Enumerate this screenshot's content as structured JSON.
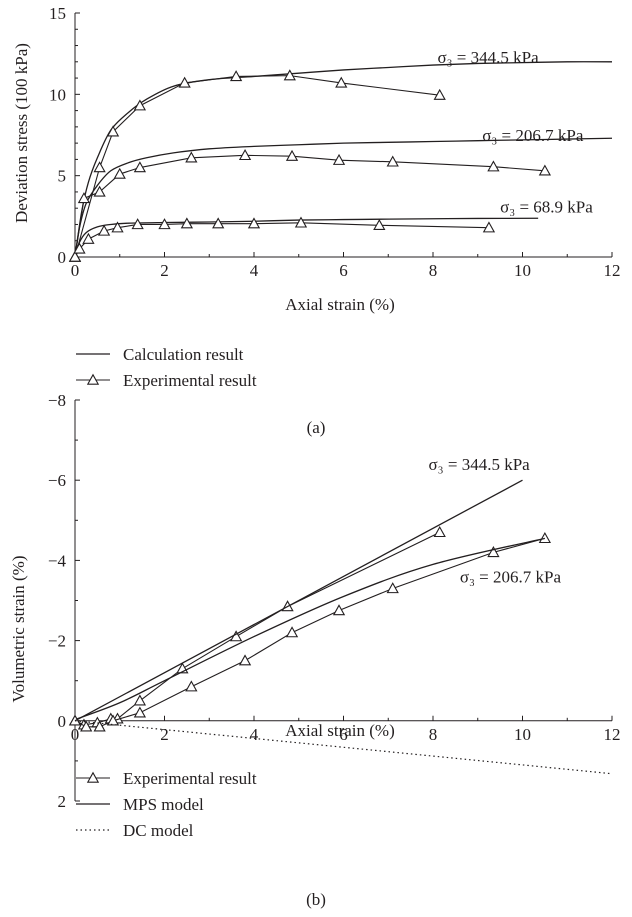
{
  "chart_data": [
    {
      "type": "line",
      "panel": "(a)",
      "xlabel": "Axial strain (%)",
      "ylabel": "Deviation stress (100 kPa)",
      "xlim": [
        0,
        12
      ],
      "ylim": [
        0,
        15
      ],
      "xticks": [
        "0",
        "2",
        "4",
        "6",
        "8",
        "10",
        "12"
      ],
      "yticks": [
        "0",
        "5",
        "10",
        "15"
      ],
      "annotations": [
        {
          "text": "σ₃ = 344.5 kPa",
          "x": 8.1,
          "y": 12.3
        },
        {
          "text": "σ₃ = 206.7 kPa",
          "x": 9.1,
          "y": 7.5
        },
        {
          "text": "σ₃ = 68.9 kPa",
          "x": 9.5,
          "y": 3.1
        }
      ],
      "series": [
        {
          "name": "Calculation result",
          "style": "solid",
          "group": "344.5",
          "x": [
            0,
            0.15,
            0.3,
            0.5,
            0.8,
            1.2,
            1.6,
            2.2,
            3.0,
            4.0,
            5.0,
            6.0,
            7.0,
            8.0,
            9.0,
            10.0,
            11.0,
            12.0
          ],
          "y": [
            0,
            2.8,
            4.6,
            6.1,
            7.8,
            8.9,
            9.7,
            10.5,
            10.9,
            11.1,
            11.3,
            11.5,
            11.65,
            11.8,
            11.9,
            11.95,
            12.0,
            12.0
          ]
        },
        {
          "name": "Experimental result",
          "style": "triangle",
          "group": "344.5",
          "x": [
            0,
            0.55,
            0.85,
            1.45,
            2.45,
            3.6,
            4.8,
            5.95,
            8.15
          ],
          "y": [
            0,
            5.5,
            7.7,
            9.3,
            10.7,
            11.1,
            11.15,
            10.7,
            9.95
          ]
        },
        {
          "name": "Calculation result",
          "style": "solid",
          "group": "206.7",
          "x": [
            0,
            0.1,
            0.25,
            0.5,
            0.8,
            1.2,
            1.6,
            2.2,
            3.0,
            4.0,
            5.0,
            6.0,
            7.0,
            8.0,
            9.0,
            10.0,
            11.0,
            12.0
          ],
          "y": [
            0,
            1.8,
            3.3,
            4.4,
            5.3,
            5.8,
            6.1,
            6.4,
            6.65,
            6.8,
            6.9,
            7.0,
            7.05,
            7.1,
            7.15,
            7.2,
            7.25,
            7.3
          ]
        },
        {
          "name": "Experimental result",
          "style": "triangle",
          "group": "206.7",
          "x": [
            0,
            0.2,
            0.55,
            1.0,
            1.45,
            2.6,
            3.8,
            4.85,
            5.9,
            7.1,
            9.35,
            10.5
          ],
          "y": [
            0,
            3.6,
            4.0,
            5.1,
            5.5,
            6.1,
            6.25,
            6.2,
            5.95,
            5.85,
            5.55,
            5.3
          ]
        },
        {
          "name": "Calculation result",
          "style": "solid",
          "group": "68.9",
          "x": [
            0,
            0.1,
            0.25,
            0.5,
            0.8,
            1.2,
            2.0,
            3.0,
            4.0,
            5.0,
            6.0,
            7.0,
            8.0,
            9.0,
            10.35
          ],
          "y": [
            0,
            0.9,
            1.5,
            1.85,
            2.0,
            2.08,
            2.12,
            2.15,
            2.2,
            2.27,
            2.3,
            2.33,
            2.35,
            2.37,
            2.38
          ]
        },
        {
          "name": "Experimental result",
          "style": "triangle",
          "group": "68.9",
          "x": [
            0,
            0.1,
            0.3,
            0.65,
            0.95,
            1.4,
            2.0,
            2.5,
            3.2,
            4.0,
            5.05,
            6.8,
            9.25
          ],
          "y": [
            0,
            0.5,
            1.1,
            1.6,
            1.8,
            2.0,
            2.0,
            2.05,
            2.05,
            2.05,
            2.1,
            1.95,
            1.8
          ]
        }
      ]
    },
    {
      "type": "line",
      "panel": "(b)",
      "xlabel": "Axial strain (%)",
      "ylabel": "Volumetric strain (%)",
      "xlim": [
        0,
        12
      ],
      "ylim": [
        2,
        -8
      ],
      "xticks": [
        "0",
        "2",
        "4",
        "6",
        "8",
        "10",
        "12"
      ],
      "yticks": [
        "2",
        "0",
        "−2",
        "−4",
        "−6",
        "−8"
      ],
      "annotations": [
        {
          "text": "σ₃ = 344.5 kPa",
          "x": 7.9,
          "y": -6.4
        },
        {
          "text": "σ₃ = 206.7 kPa",
          "x": 8.6,
          "y": -3.6
        }
      ],
      "series": [
        {
          "name": "Experimental result",
          "style": "triangle",
          "group": "344.5",
          "x": [
            0,
            0.2,
            0.5,
            0.8,
            0.95,
            1.45,
            2.4,
            3.6,
            4.75,
            8.15
          ],
          "y": [
            0,
            0.1,
            0.05,
            -0.05,
            -0.05,
            -0.5,
            -1.3,
            -2.1,
            -2.85,
            -4.7
          ]
        },
        {
          "name": "Experimental result",
          "style": "triangle",
          "group": "206.7",
          "x": [
            0,
            0.25,
            0.55,
            0.85,
            1.45,
            2.6,
            3.8,
            4.85,
            5.9,
            7.1,
            9.35,
            10.5
          ],
          "y": [
            0,
            0.15,
            0.15,
            0.0,
            -0.2,
            -0.85,
            -1.5,
            -2.2,
            -2.75,
            -3.3,
            -4.2,
            -4.55
          ]
        },
        {
          "name": "MPS model",
          "style": "solid",
          "group": "344.5",
          "x": [
            0,
            10.0
          ],
          "y": [
            0,
            -6.0
          ]
        },
        {
          "name": "MPS model",
          "style": "solid",
          "group": "206.7",
          "x": [
            0.05,
            1.0,
            2.0,
            4.0,
            6.0,
            8.0,
            10.5
          ],
          "y": [
            -0.05,
            -0.45,
            -1.0,
            -2.1,
            -3.1,
            -3.9,
            -4.55
          ]
        },
        {
          "name": "DC model",
          "style": "dotted",
          "group": "all",
          "x": [
            0,
            2.0,
            4.0,
            6.0,
            8.0,
            10.0,
            12.0
          ],
          "y": [
            0,
            0.22,
            0.44,
            0.66,
            0.88,
            1.1,
            1.32
          ]
        }
      ]
    }
  ],
  "legend_a": {
    "items": [
      {
        "label": "Calculation result",
        "style": "solid"
      },
      {
        "label": "Experimental result",
        "style": "triangle"
      }
    ]
  },
  "legend_b": {
    "items": [
      {
        "label": "Experimental result",
        "style": "triangle"
      },
      {
        "label": "MPS model",
        "style": "solid"
      },
      {
        "label": "DC model",
        "style": "dotted"
      }
    ]
  },
  "captions": {
    "a": "(a)",
    "b": "(b)"
  }
}
